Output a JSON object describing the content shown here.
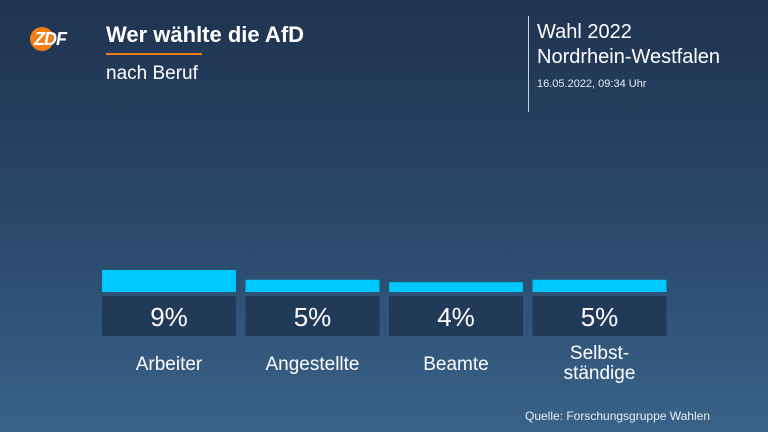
{
  "header": {
    "title": "Wer wählte die AfD",
    "subtitle": "nach Beruf",
    "election": "Wahl 2022",
    "region": "Nordrhein-Westfalen",
    "timestamp": "16.05.2022, 09:34 Uhr"
  },
  "logo": {
    "text": "ZDF"
  },
  "source": "Quelle: Forschungsgruppe Wahlen",
  "colors": {
    "accent": "#f07d18",
    "bar": "#00c8ff",
    "label_box": "#213a58"
  },
  "chart_data": {
    "type": "bar",
    "categories": [
      "Arbeiter",
      "Angestellte",
      "Beamte",
      "Selbst-\nständige"
    ],
    "values": [
      9,
      5,
      4,
      5
    ],
    "value_labels": [
      "9%",
      "5%",
      "4%",
      "5%"
    ],
    "title": "Wer wählte die AfD",
    "subtitle": "nach Beruf",
    "unit": "%",
    "ylim": [
      0,
      9
    ]
  }
}
